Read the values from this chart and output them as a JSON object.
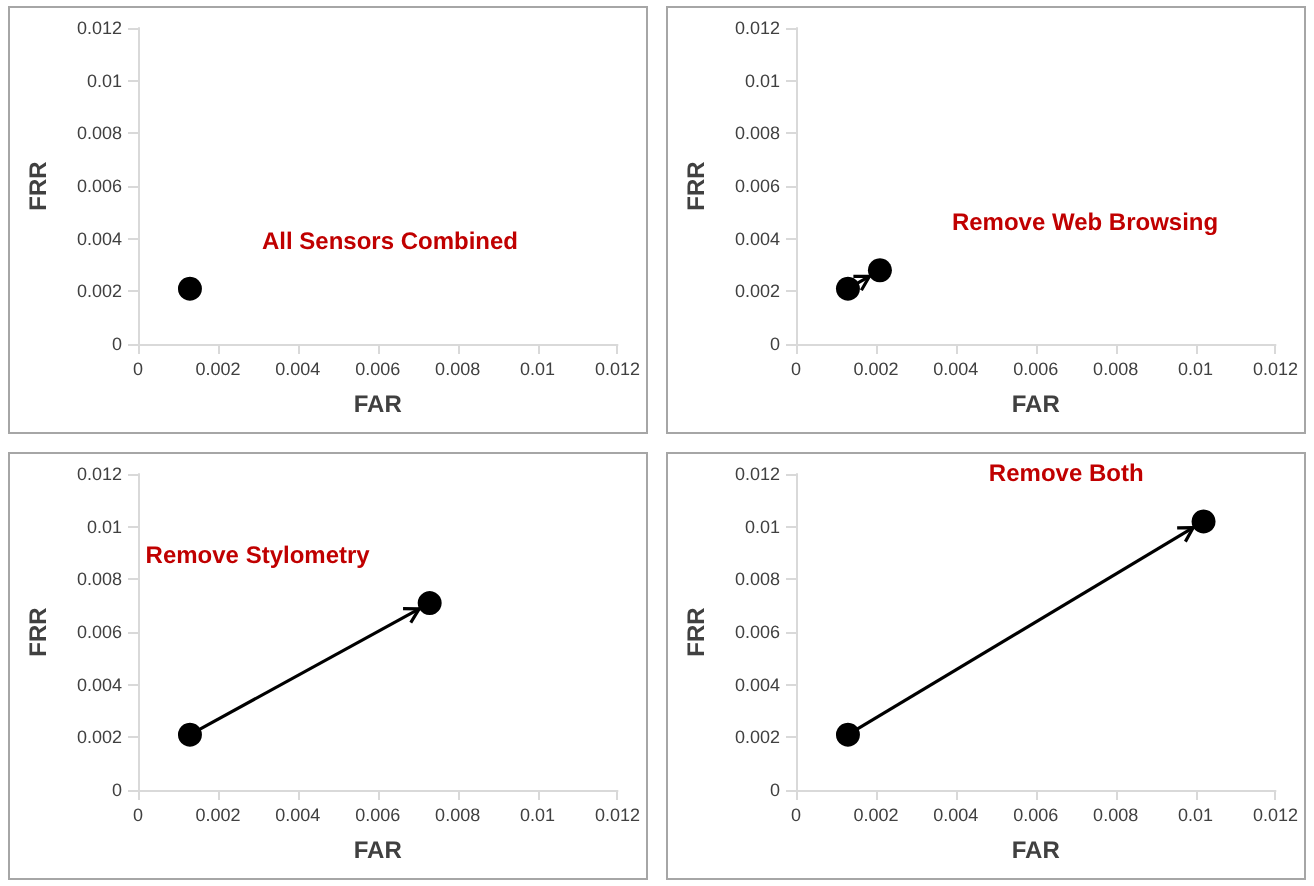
{
  "chart_data": [
    {
      "type": "line",
      "xlabel": "FAR",
      "ylabel": "FRR",
      "x": [
        0.0013
      ],
      "values": [
        0.0021
      ],
      "color": "#000000",
      "marker": "circle",
      "xlim": [
        0,
        0.012
      ],
      "ylim": [
        0,
        0.012
      ],
      "xticks": [
        0,
        0.002,
        0.004,
        0.006,
        0.008,
        0.01,
        0.012
      ],
      "yticks": [
        0,
        0.002,
        0.004,
        0.006,
        0.008,
        0.01,
        0.012
      ],
      "grid": false,
      "annotations": [
        "All Sensors Combined"
      ]
    },
    {
      "type": "line",
      "xlabel": "FAR",
      "ylabel": "FRR",
      "x": [
        0.0013,
        0.0021
      ],
      "values": [
        0.0021,
        0.0028
      ],
      "color": "#000000",
      "marker": "circle",
      "xlim": [
        0,
        0.012
      ],
      "ylim": [
        0,
        0.012
      ],
      "xticks": [
        0,
        0.002,
        0.004,
        0.006,
        0.008,
        0.01,
        0.012
      ],
      "yticks": [
        0,
        0.002,
        0.004,
        0.006,
        0.008,
        0.01,
        0.012
      ],
      "grid": false,
      "annotations": [
        "Remove Web Browsing"
      ]
    },
    {
      "type": "line",
      "xlabel": "FAR",
      "ylabel": "FRR",
      "x": [
        0.0013,
        0.0073
      ],
      "values": [
        0.0021,
        0.0071
      ],
      "color": "#000000",
      "marker": "circle",
      "xlim": [
        0,
        0.012
      ],
      "ylim": [
        0,
        0.012
      ],
      "xticks": [
        0,
        0.002,
        0.004,
        0.006,
        0.008,
        0.01,
        0.012
      ],
      "yticks": [
        0,
        0.002,
        0.004,
        0.006,
        0.008,
        0.01,
        0.012
      ],
      "grid": false,
      "annotations": [
        "Remove Stylometry"
      ]
    },
    {
      "type": "line",
      "xlabel": "FAR",
      "ylabel": "FRR",
      "x": [
        0.0013,
        0.0102
      ],
      "values": [
        0.0021,
        0.0102
      ],
      "color": "#000000",
      "marker": "circle",
      "xlim": [
        0,
        0.012
      ],
      "ylim": [
        0,
        0.012
      ],
      "xticks": [
        0,
        0.002,
        0.004,
        0.006,
        0.008,
        0.01,
        0.012
      ],
      "yticks": [
        0,
        0.002,
        0.004,
        0.006,
        0.008,
        0.01,
        0.012
      ],
      "grid": false,
      "annotations": [
        "Remove Both"
      ]
    }
  ]
}
